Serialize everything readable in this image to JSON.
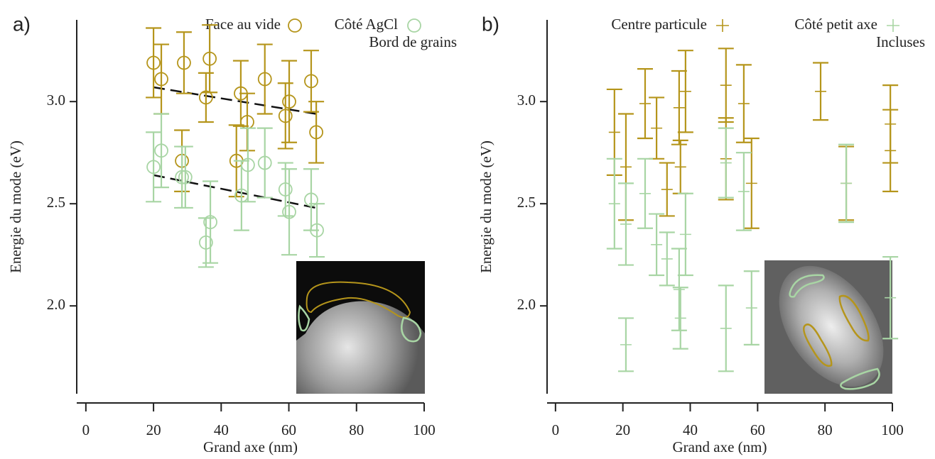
{
  "chart_data": [
    {
      "type": "scatter",
      "label": "a)",
      "xlabel": "Grand axe (nm)",
      "ylabel": "Energie du mode (eV)",
      "xlim": [
        -2.7,
        100
      ],
      "ylim": [
        1.57,
        3.4
      ],
      "xticks": [
        0,
        20,
        40,
        60,
        80,
        100
      ],
      "yticks": [
        {
          "value": 2,
          "label": "2.0"
        },
        2.5,
        {
          "value": 3,
          "label": "3.0"
        }
      ],
      "series": [
        {
          "name": "Face au vide",
          "color": "#b5951b",
          "marker": "circle",
          "x": [
            20,
            22.3,
            29,
            28.4,
            35.5,
            36.6,
            45.8,
            44.5,
            47.7,
            52.9,
            60.1,
            59,
            66.6,
            68.1
          ],
          "values": [
            3.19,
            3.11,
            3.19,
            2.71,
            3.02,
            3.21,
            3.04,
            2.71,
            2.9,
            3.11,
            3,
            2.93,
            3.1,
            2.85
          ],
          "errors": [
            0.17,
            0.17,
            0.15,
            0.15,
            0.12,
            0.165,
            0.16,
            0.175,
            0.14,
            0.17,
            0.2,
            0.16,
            0.15,
            0.15
          ]
        },
        {
          "name": "Côté AgCl",
          "color": "#a8d5a4",
          "marker": "circle",
          "x": [
            20,
            22.3,
            28.4,
            29.4,
            35.5,
            36.8,
            46,
            47.9,
            52.9,
            59,
            60.1,
            66.6,
            68.3
          ],
          "values": [
            2.68,
            2.76,
            2.63,
            2.63,
            2.31,
            2.41,
            2.54,
            2.69,
            2.7,
            2.57,
            2.46,
            2.52,
            2.37
          ],
          "errors": [
            0.17,
            0.18,
            0.15,
            0.15,
            0.12,
            0.2,
            0.17,
            0.18,
            0.17,
            0.13,
            0.21,
            0.15,
            0.13
          ]
        },
        {
          "name": "Bord de grains",
          "x": [],
          "values": [],
          "errors": []
        }
      ],
      "fits": [
        {
          "x": [
            20,
            68
          ],
          "y": [
            3.07,
            2.94
          ]
        },
        {
          "x": [
            20,
            68
          ],
          "y": [
            2.64,
            2.48
          ]
        }
      ]
    },
    {
      "type": "scatter",
      "label": "b)",
      "xlabel": "Grand axe (nm)",
      "ylabel": "Energie du mode (eV)",
      "xlim": [
        -2.5,
        100
      ],
      "ylim": [
        1.57,
        3.4
      ],
      "xticks": [
        0,
        20,
        40,
        60,
        80,
        100
      ],
      "yticks": [
        {
          "value": 2,
          "label": "2.0"
        },
        2.5,
        {
          "value": 3,
          "label": "3.0"
        }
      ],
      "series": [
        {
          "name": "Centre particule",
          "color": "#b5951b",
          "marker": "plus",
          "x": [
            17.5,
            20.9,
            26.6,
            30,
            33.1,
            36.7,
            37.1,
            38.6,
            50.6,
            50.6,
            55.9,
            58.2,
            78.7,
            86.3,
            99.4,
            99.4
          ],
          "values": [
            2.85,
            2.68,
            2.99,
            2.87,
            2.57,
            2.97,
            2.68,
            3.05,
            3.08,
            2.72,
            2.99,
            2.6,
            3.05,
            2.6,
            2.89,
            2.76
          ],
          "errors": [
            0.21,
            0.26,
            0.17,
            0.15,
            0.13,
            0.18,
            0.13,
            0.2,
            0.18,
            0.2,
            0.19,
            0.22,
            0.14,
            0.18,
            0.19,
            0.2
          ]
        },
        {
          "name": "Côté petit axe",
          "color": "#a8d5a4",
          "marker": "plus",
          "x": [
            17.5,
            20.9,
            20.9,
            26.6,
            30,
            33.1,
            36.7,
            37.1,
            38.6,
            50.6,
            50.6,
            55.9,
            58.2,
            86.3,
            99.4
          ],
          "values": [
            2.5,
            2.4,
            1.81,
            2.55,
            2.3,
            2.23,
            2.08,
            1.94,
            2.35,
            1.89,
            2.7,
            2.56,
            1.99,
            2.6,
            2.04
          ],
          "errors": [
            0.22,
            0.2,
            0.13,
            0.17,
            0.15,
            0.13,
            0.2,
            0.15,
            0.2,
            0.21,
            0.17,
            0.19,
            0.18,
            0.19,
            0.2
          ]
        },
        {
          "name": "Incluses",
          "x": [],
          "values": [],
          "errors": []
        }
      ]
    }
  ]
}
